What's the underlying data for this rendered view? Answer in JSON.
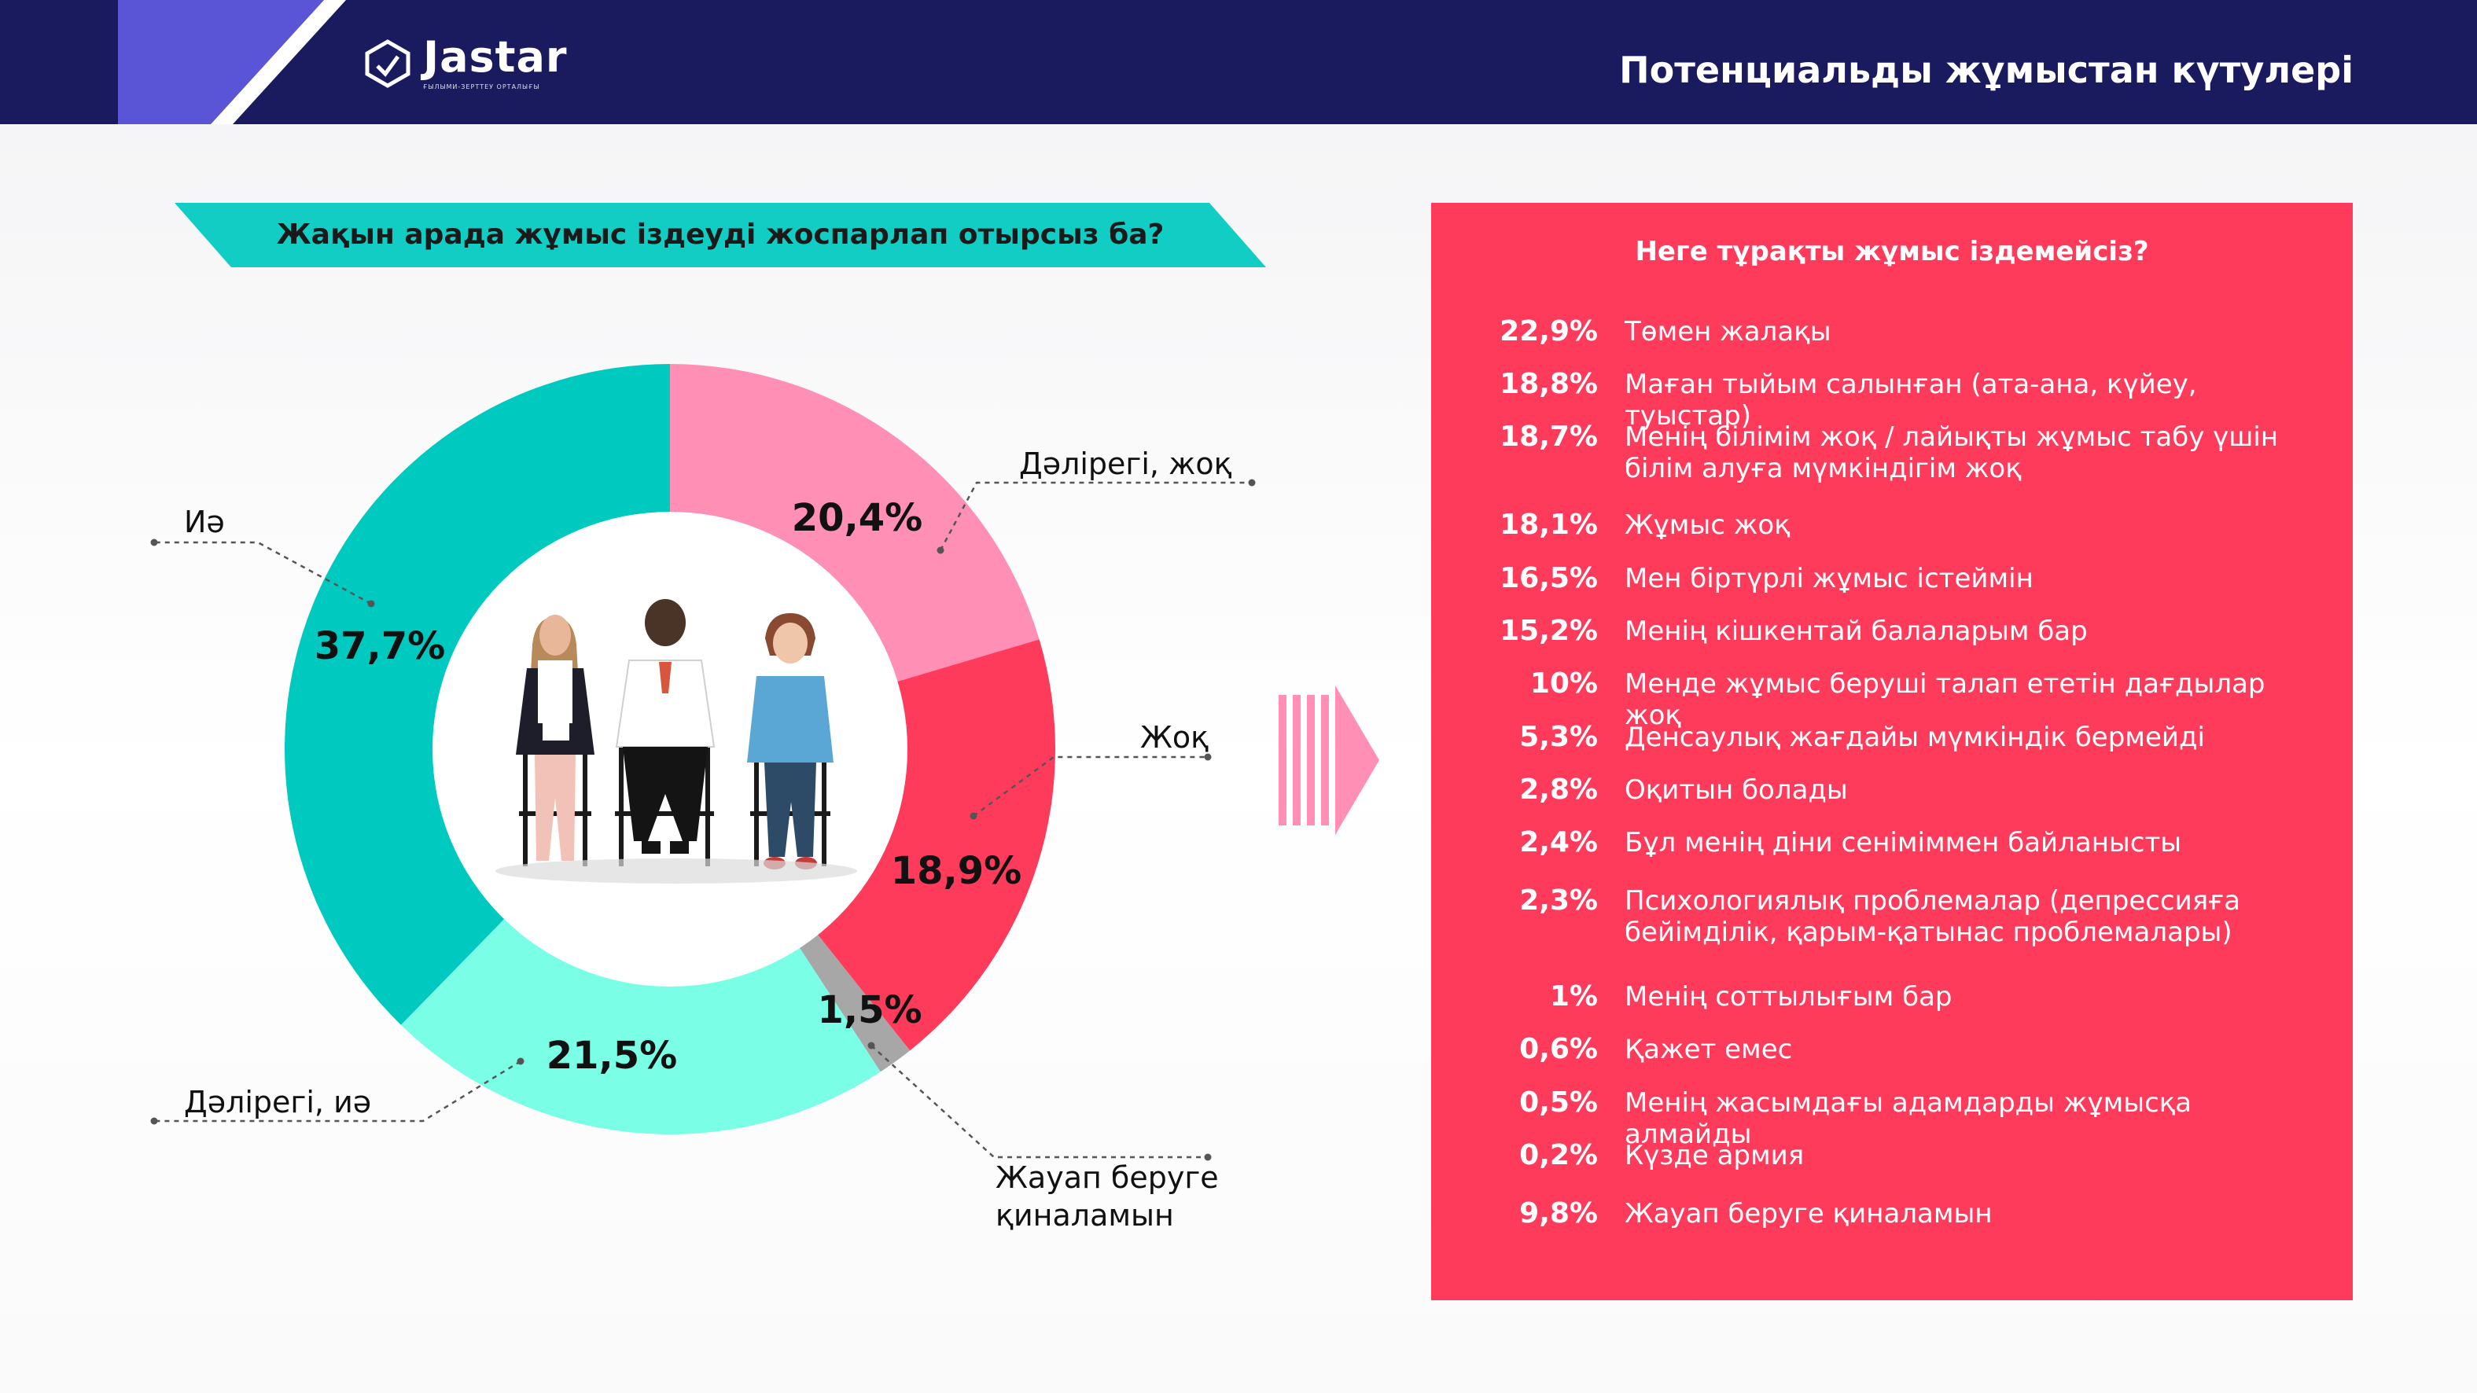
{
  "header": {
    "logo_text": "Jastar",
    "logo_subtext": "ҒЫЛЫМИ-ЗЕРТТЕУ ОРТАЛЫҒЫ",
    "title": "Потенциальды жұмыстан күтулері"
  },
  "question": {
    "text": "Жақын арада жұмыс іздеуді жоспарлап отырсыз ба?"
  },
  "chart_data": {
    "type": "pie",
    "style": "donut",
    "title": "Жақын арада жұмыс іздеуді жоспарлап отырсыз ба?",
    "slices": [
      {
        "label": "Дәлірегі, жоқ",
        "value": 20.4,
        "value_label": "20,4%",
        "color": "#ff8fb5"
      },
      {
        "label": "Жоқ",
        "value": 18.9,
        "value_label": "18,9%",
        "color": "#ff3b5c"
      },
      {
        "label": "Жауап беруге қиналамын",
        "value": 1.5,
        "value_label": "1,5%",
        "color": "#a7a7a7"
      },
      {
        "label": "Дәлірегі, иә",
        "value": 21.5,
        "value_label": "21,5%",
        "color": "#7affe6"
      },
      {
        "label": "Иә",
        "value": 37.7,
        "value_label": "37,7%",
        "color": "#00c9c0"
      }
    ],
    "legend": "outside-callouts"
  },
  "panel": {
    "title": "Неге тұрақты жұмыс іздемейсіз?",
    "items": [
      {
        "pct": "22,9%",
        "text": "Төмен жалақы"
      },
      {
        "pct": "18,8%",
        "text": "Маған тыйым салынған (ата-ана, күйеу, туыстар)"
      },
      {
        "pct": "18,7%",
        "text": "Менің білімім жоқ / лайықты жұмыс табу үшін білім алуға мүмкіндігім жоқ"
      },
      {
        "pct": "18,1%",
        "text": "Жұмыс жоқ"
      },
      {
        "pct": "16,5%",
        "text": "Мен біртүрлі жұмыс істеймін"
      },
      {
        "pct": "15,2%",
        "text": "Менің кішкентай балаларым бар"
      },
      {
        "pct": "10%",
        "text": "Менде жұмыс беруші талап ететін дағдылар жоқ"
      },
      {
        "pct": "5,3%",
        "text": "Денсаулық жағдайы мүмкіндік бермейді"
      },
      {
        "pct": "2,8%",
        "text": "Оқитын болады"
      },
      {
        "pct": "2,4%",
        "text": "Бұл менің діни сеніміммен байланысты"
      },
      {
        "pct": "2,3%",
        "text": "Психологиялық проблемалар (депрессияға бейімділік, қарым-қатынас проблемалары)"
      },
      {
        "pct": "1%",
        "text": "Менің соттылығым бар"
      },
      {
        "pct": "0,6%",
        "text": "Қажет емес"
      },
      {
        "pct": "0,5%",
        "text": "Менің жасымдағы адамдарды жұмысқа алмайды"
      },
      {
        "pct": "0,2%",
        "text": "Күзде армия"
      },
      {
        "pct": "9,8%",
        "text": "Жауап беруге қиналамын"
      }
    ]
  }
}
